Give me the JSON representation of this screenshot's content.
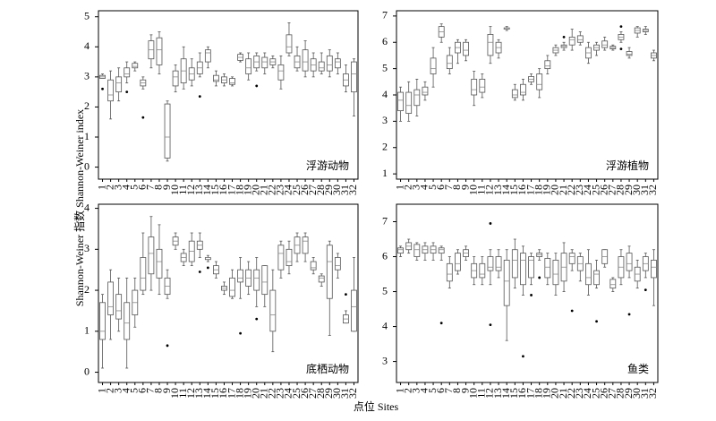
{
  "y_label": "Shannon-Weiner 指数 Shannon-Weiner index",
  "x_label": "点位 Sites",
  "chart_data": [
    {
      "type": "box",
      "label": "浮游动物",
      "categories": [
        "1",
        "2",
        "3",
        "4",
        "5",
        "6",
        "7",
        "8",
        "9",
        "10",
        "11",
        "12",
        "13",
        "14",
        "15",
        "16",
        "17",
        "18",
        "19",
        "20",
        "21",
        "22",
        "23",
        "24",
        "25",
        "26",
        "27",
        "28",
        "29",
        "30",
        "31",
        "32"
      ],
      "ylim": [
        -0.4,
        5.2
      ],
      "yticks": [
        0,
        1,
        2,
        3,
        4,
        5
      ],
      "min": [
        2.95,
        1.6,
        2.2,
        2.8,
        3.2,
        2.6,
        3.3,
        3.1,
        0.2,
        2.5,
        2.6,
        2.7,
        3.0,
        3.3,
        2.7,
        2.7,
        2.7,
        3.5,
        2.9,
        3.2,
        3.1,
        3.3,
        2.6,
        3.7,
        3.2,
        3.0,
        3.0,
        3.1,
        3.0,
        3.1,
        2.5,
        1.7
      ],
      "q1": [
        2.95,
        2.2,
        2.5,
        3.0,
        3.3,
        2.7,
        3.6,
        3.4,
        0.3,
        2.7,
        2.8,
        2.9,
        3.1,
        3.5,
        2.85,
        2.8,
        2.75,
        3.55,
        3.1,
        3.3,
        3.3,
        3.4,
        2.9,
        3.8,
        3.3,
        3.2,
        3.2,
        3.2,
        3.2,
        3.3,
        2.7,
        2.5
      ],
      "median": [
        3.0,
        2.4,
        2.8,
        3.1,
        3.35,
        2.8,
        3.9,
        3.9,
        1.0,
        3.0,
        3.2,
        3.1,
        3.3,
        3.8,
        2.9,
        2.9,
        2.8,
        3.65,
        3.3,
        3.5,
        3.5,
        3.5,
        3.2,
        4.0,
        3.5,
        3.5,
        3.4,
        3.3,
        3.4,
        3.5,
        2.9,
        3.1
      ],
      "q3": [
        3.05,
        2.9,
        3.0,
        3.3,
        3.45,
        2.9,
        4.2,
        4.3,
        2.1,
        3.2,
        3.6,
        3.3,
        3.5,
        3.9,
        3.05,
        3.0,
        2.95,
        3.75,
        3.6,
        3.7,
        3.65,
        3.6,
        3.4,
        4.4,
        3.7,
        3.9,
        3.6,
        3.5,
        3.7,
        3.6,
        3.1,
        3.5
      ],
      "max": [
        3.1,
        3.2,
        3.3,
        3.5,
        3.5,
        3.0,
        4.4,
        4.5,
        2.2,
        3.4,
        4.0,
        3.6,
        3.8,
        4.0,
        3.2,
        3.1,
        3.0,
        3.8,
        3.8,
        3.8,
        3.8,
        3.7,
        3.7,
        4.8,
        4.0,
        4.2,
        3.8,
        3.8,
        3.9,
        3.8,
        3.4,
        3.6
      ],
      "outliers": [
        [
          2.6
        ],
        [],
        [],
        [
          2.5
        ],
        [],
        [
          1.65
        ],
        [],
        [],
        [],
        [],
        [],
        [],
        [
          2.35
        ],
        [],
        [],
        [],
        [],
        [],
        [],
        [
          2.7
        ],
        [],
        [],
        [],
        [],
        [],
        [],
        [],
        [],
        [],
        [],
        [],
        []
      ]
    },
    {
      "type": "box",
      "label": "浮游植物",
      "categories": [
        "1",
        "2",
        "3",
        "4",
        "5",
        "6",
        "7",
        "8",
        "9",
        "10",
        "11",
        "12",
        "13",
        "14",
        "15",
        "16",
        "17",
        "18",
        "19",
        "20",
        "21",
        "22",
        "23",
        "24",
        "25",
        "26",
        "27",
        "28",
        "29",
        "30",
        "31",
        "32"
      ],
      "ylim": [
        0.8,
        7.2
      ],
      "yticks": [
        1,
        2,
        3,
        4,
        5,
        6,
        7
      ],
      "min": [
        3.0,
        3.0,
        3.2,
        3.8,
        4.3,
        6.0,
        4.8,
        5.2,
        5.3,
        3.6,
        3.9,
        5.2,
        5.4,
        6.45,
        3.8,
        3.8,
        4.4,
        3.9,
        4.8,
        5.5,
        5.7,
        5.7,
        5.9,
        5.2,
        5.5,
        5.7,
        5.7,
        6.0,
        5.4,
        6.2,
        6.3,
        5.3
      ],
      "q1": [
        3.4,
        3.3,
        3.6,
        4.0,
        4.8,
        6.2,
        5.0,
        5.6,
        5.5,
        4.0,
        4.1,
        5.5,
        5.6,
        6.5,
        3.9,
        4.0,
        4.5,
        4.2,
        5.0,
        5.6,
        5.8,
        5.9,
        6.0,
        5.4,
        5.7,
        5.8,
        5.75,
        6.1,
        5.5,
        6.35,
        6.4,
        5.4
      ],
      "median": [
        3.8,
        3.6,
        4.0,
        4.1,
        5.0,
        6.4,
        5.2,
        5.8,
        5.7,
        4.2,
        4.3,
        6.0,
        5.8,
        6.5,
        4.0,
        4.1,
        4.6,
        4.4,
        5.1,
        5.7,
        5.85,
        6.1,
        6.1,
        5.6,
        5.8,
        5.9,
        5.8,
        6.2,
        5.55,
        6.45,
        6.45,
        5.5
      ],
      "q3": [
        4.1,
        4.1,
        4.2,
        4.3,
        5.4,
        6.6,
        5.5,
        6.0,
        6.0,
        4.6,
        4.6,
        6.3,
        6.0,
        6.55,
        4.2,
        4.4,
        4.7,
        4.8,
        5.3,
        5.8,
        5.9,
        6.2,
        6.25,
        5.8,
        5.9,
        6.05,
        5.85,
        6.3,
        5.65,
        6.55,
        6.5,
        5.6
      ],
      "max": [
        4.3,
        4.5,
        4.6,
        4.5,
        5.8,
        6.7,
        5.8,
        6.1,
        6.1,
        4.9,
        4.8,
        6.6,
        6.1,
        6.6,
        4.4,
        4.6,
        4.8,
        5.0,
        5.5,
        5.9,
        6.0,
        6.5,
        6.4,
        6.0,
        6.0,
        6.2,
        5.9,
        6.4,
        5.8,
        6.6,
        6.6,
        5.7
      ],
      "outliers": [
        [],
        [],
        [],
        [],
        [],
        [],
        [],
        [],
        [],
        [],
        [],
        [],
        [],
        [],
        [],
        [],
        [],
        [],
        [],
        [],
        [
          6.2
        ],
        [],
        [],
        [],
        [],
        [],
        [],
        [
          6.6,
          5.75
        ],
        [],
        [],
        [],
        []
      ]
    },
    {
      "type": "box",
      "label": "底栖动物",
      "categories": [
        "1",
        "2",
        "3",
        "4",
        "5",
        "6",
        "7",
        "8",
        "9",
        "10",
        "11",
        "12",
        "13",
        "14",
        "15",
        "16",
        "17",
        "18",
        "19",
        "20",
        "21",
        "22",
        "23",
        "24",
        "25",
        "26",
        "27",
        "28",
        "29",
        "30",
        "31",
        "32"
      ],
      "ylim": [
        -0.25,
        4.1
      ],
      "yticks": [
        0,
        1,
        2,
        3,
        4
      ],
      "min": [
        0.1,
        0.8,
        1.0,
        0.1,
        1.1,
        1.9,
        2.0,
        1.9,
        1.8,
        3.0,
        2.6,
        2.6,
        2.8,
        2.7,
        2.3,
        1.9,
        1.8,
        1.8,
        1.9,
        1.6,
        1.6,
        0.5,
        2.3,
        2.4,
        2.7,
        2.7,
        2.4,
        2.1,
        0.9,
        2.3,
        1.2,
        1.0
      ],
      "q1": [
        0.8,
        1.4,
        1.3,
        0.8,
        1.4,
        2.0,
        2.4,
        2.3,
        1.9,
        3.1,
        2.7,
        2.7,
        3.0,
        2.75,
        2.4,
        2.0,
        1.85,
        2.2,
        2.1,
        2.0,
        1.9,
        1.0,
        2.5,
        2.6,
        2.9,
        2.9,
        2.5,
        2.2,
        1.8,
        2.5,
        1.2,
        1.0
      ],
      "median": [
        1.0,
        1.6,
        1.5,
        1.2,
        1.7,
        2.3,
        2.9,
        2.7,
        2.1,
        3.2,
        2.8,
        2.95,
        3.1,
        2.8,
        2.5,
        2.05,
        2.0,
        2.3,
        2.3,
        2.3,
        2.2,
        1.4,
        2.9,
        2.7,
        3.1,
        3.2,
        2.55,
        2.3,
        2.7,
        2.6,
        1.3,
        1.6
      ],
      "q3": [
        1.7,
        2.2,
        1.9,
        1.7,
        2.0,
        2.8,
        3.3,
        3.0,
        2.3,
        3.3,
        2.9,
        3.2,
        3.2,
        2.8,
        2.6,
        2.1,
        2.3,
        2.5,
        2.5,
        2.5,
        2.6,
        2.0,
        3.1,
        3.0,
        3.3,
        3.3,
        2.7,
        2.35,
        3.1,
        2.8,
        1.4,
        2.0
      ],
      "max": [
        1.9,
        2.5,
        2.3,
        2.3,
        2.3,
        3.4,
        3.8,
        3.6,
        2.5,
        3.4,
        3.0,
        3.4,
        3.4,
        2.85,
        2.7,
        2.2,
        2.5,
        2.8,
        2.7,
        2.8,
        2.6,
        2.5,
        3.2,
        3.2,
        3.4,
        3.4,
        2.8,
        2.4,
        3.2,
        2.9,
        1.5,
        2.8
      ],
      "outliers": [
        [],
        [],
        [],
        [],
        [],
        [],
        [],
        [],
        [
          0.65
        ],
        [],
        [],
        [],
        [
          2.45
        ],
        [
          2.55
        ],
        [],
        [],
        [],
        [
          0.95
        ],
        [],
        [
          1.3
        ],
        [],
        [],
        [],
        [],
        [],
        [],
        [],
        [],
        [],
        [],
        [
          1.9
        ],
        []
      ]
    },
    {
      "type": "box",
      "label": "鱼类",
      "categories": [
        "1",
        "2",
        "3",
        "4",
        "5",
        "6",
        "7",
        "8",
        "9",
        "10",
        "11",
        "12",
        "13",
        "14",
        "15",
        "16",
        "17",
        "18",
        "19",
        "20",
        "21",
        "22",
        "23",
        "24",
        "25",
        "26",
        "27",
        "28",
        "29",
        "30",
        "31",
        "32"
      ],
      "ylim": [
        2.4,
        7.5
      ],
      "yticks": [
        3,
        4,
        5,
        6,
        7
      ],
      "min": [
        6.0,
        6.1,
        5.9,
        5.9,
        5.9,
        5.9,
        5.1,
        5.5,
        5.9,
        5.2,
        5.2,
        5.2,
        5.4,
        3.6,
        5.1,
        4.9,
        5.2,
        5.9,
        5.2,
        4.9,
        5.0,
        5.6,
        5.3,
        4.9,
        5.1,
        5.7,
        5.0,
        5.2,
        5.4,
        5.1,
        5.4,
        4.6
      ],
      "q1": [
        6.1,
        6.2,
        6.0,
        6.1,
        6.1,
        6.1,
        5.3,
        5.6,
        6.0,
        5.4,
        5.4,
        5.6,
        5.6,
        4.6,
        5.4,
        5.2,
        5.4,
        6.0,
        5.4,
        5.2,
        5.3,
        5.8,
        5.6,
        5.2,
        5.2,
        5.8,
        5.1,
        5.4,
        5.6,
        5.3,
        5.6,
        5.4
      ],
      "median": [
        6.2,
        6.3,
        6.2,
        6.2,
        6.2,
        6.2,
        5.5,
        5.8,
        6.1,
        5.6,
        5.5,
        5.7,
        5.7,
        5.3,
        5.9,
        5.9,
        5.9,
        6.05,
        5.7,
        5.5,
        5.7,
        6.0,
        5.8,
        5.4,
        5.5,
        6.0,
        5.2,
        5.7,
        5.8,
        5.5,
        5.8,
        5.7
      ],
      "q3": [
        6.25,
        6.4,
        6.35,
        6.3,
        6.3,
        6.25,
        5.8,
        6.1,
        6.2,
        5.8,
        5.8,
        6.0,
        6.0,
        5.9,
        6.2,
        6.1,
        6.0,
        6.1,
        5.95,
        5.9,
        6.1,
        6.1,
        6.0,
        5.8,
        5.6,
        6.2,
        5.35,
        6.0,
        6.1,
        5.7,
        6.0,
        5.9
      ],
      "max": [
        6.3,
        6.5,
        6.4,
        6.4,
        6.4,
        6.3,
        6.0,
        6.2,
        6.3,
        6.0,
        6.0,
        6.2,
        6.2,
        6.2,
        6.5,
        6.3,
        6.1,
        6.2,
        6.1,
        6.1,
        6.4,
        6.2,
        6.1,
        6.2,
        5.9,
        6.2,
        5.4,
        6.2,
        6.3,
        5.9,
        6.1,
        6.2
      ],
      "outliers": [
        [],
        [],
        [],
        [],
        [],
        [
          4.1
        ],
        [],
        [],
        [],
        [],
        [],
        [
          6.95,
          4.05
        ],
        [],
        [],
        [],
        [
          3.15
        ],
        [
          4.9
        ],
        [
          5.4
        ],
        [],
        [],
        [],
        [
          4.45
        ],
        [],
        [],
        [
          4.15
        ],
        [],
        [],
        [],
        [
          4.35
        ],
        [],
        [
          5.05
        ],
        []
      ]
    }
  ]
}
